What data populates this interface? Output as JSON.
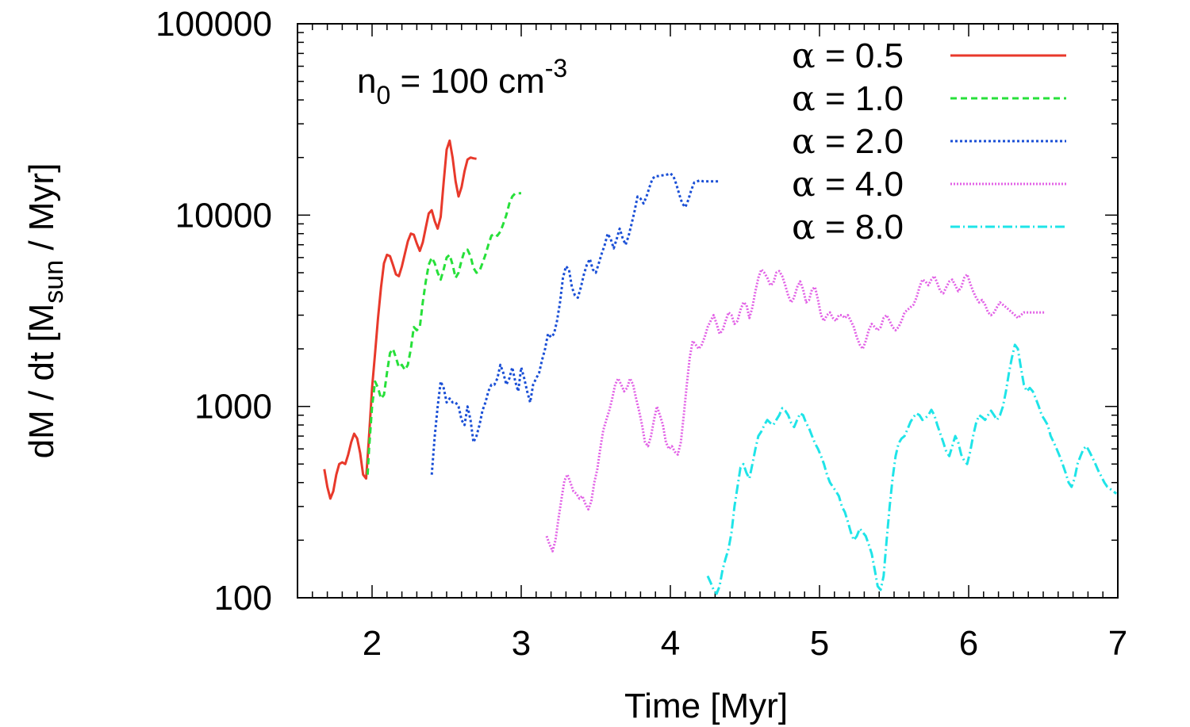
{
  "chart_data": {
    "type": "line",
    "title": "",
    "xlabel": "Time [Myr]",
    "ylabel": {
      "main": "dM / dt [M",
      "sub": "sun",
      "tail": " / Myr]"
    },
    "xlim": [
      1.5,
      7
    ],
    "ylim": [
      100,
      100000
    ],
    "yscale": "log",
    "xticks": [
      2,
      3,
      4,
      5,
      6,
      7
    ],
    "yticks": [
      100,
      1000,
      10000,
      100000
    ],
    "annotation": {
      "base": "n",
      "sub": "0",
      "mid": " = 100 cm",
      "sup": "-3"
    },
    "legend_position": "top-right",
    "series": [
      {
        "name": "α = 0.5",
        "greek": "α",
        "value_label": " = 0.5",
        "color": "#e8392b",
        "dash": "solid",
        "x": [
          1.68,
          1.7,
          1.72,
          1.74,
          1.76,
          1.78,
          1.8,
          1.82,
          1.84,
          1.86,
          1.88,
          1.9,
          1.92,
          1.94,
          1.96,
          1.98,
          2.0,
          2.02,
          2.04,
          2.06,
          2.08,
          2.1,
          2.12,
          2.14,
          2.16,
          2.18,
          2.2,
          2.22,
          2.24,
          2.26,
          2.28,
          2.3,
          2.32,
          2.34,
          2.36,
          2.38,
          2.4,
          2.42,
          2.44,
          2.46,
          2.48,
          2.5,
          2.52,
          2.54,
          2.56,
          2.58,
          2.6,
          2.62,
          2.64,
          2.66,
          2.68,
          2.7
        ],
        "y": [
          470,
          380,
          330,
          360,
          440,
          500,
          510,
          500,
          560,
          650,
          720,
          680,
          570,
          440,
          420,
          700,
          1250,
          1900,
          2900,
          4200,
          5600,
          6200,
          6100,
          5500,
          4900,
          4800,
          5400,
          6300,
          7300,
          8000,
          7900,
          7100,
          6500,
          7200,
          8600,
          10200,
          10600,
          9300,
          8500,
          9800,
          14800,
          22000,
          24500,
          20000,
          15000,
          12500,
          14000,
          17000,
          19500,
          20000,
          19800,
          19700
        ]
      },
      {
        "name": "α = 1.0",
        "greek": "α",
        "value_label": " = 1.0",
        "color": "#27e03a",
        "dash": "8,5",
        "x": [
          1.97,
          1.98,
          2.0,
          2.02,
          2.04,
          2.06,
          2.08,
          2.1,
          2.12,
          2.14,
          2.16,
          2.18,
          2.2,
          2.22,
          2.24,
          2.26,
          2.28,
          2.3,
          2.32,
          2.34,
          2.36,
          2.38,
          2.4,
          2.42,
          2.44,
          2.46,
          2.48,
          2.5,
          2.52,
          2.54,
          2.56,
          2.58,
          2.6,
          2.62,
          2.64,
          2.66,
          2.68,
          2.7,
          2.72,
          2.74,
          2.76,
          2.78,
          2.8,
          2.82,
          2.84,
          2.86,
          2.88,
          2.9,
          2.92,
          2.94,
          2.96,
          2.98,
          3.0
        ],
        "y": [
          440,
          600,
          1000,
          1350,
          1250,
          1100,
          1150,
          1500,
          1900,
          2000,
          1800,
          1600,
          1650,
          1550,
          1650,
          2000,
          2600,
          2500,
          2600,
          3500,
          4500,
          5500,
          6000,
          5600,
          5000,
          4600,
          5200,
          6000,
          6200,
          5500,
          4700,
          5000,
          5800,
          6500,
          6600,
          6100,
          5300,
          5000,
          5100,
          5600,
          6200,
          7000,
          7800,
          8000,
          7800,
          8200,
          9000,
          10000,
          11500,
          12500,
          13000,
          13000,
          13000
        ]
      },
      {
        "name": "α = 2.0",
        "greek": "α",
        "value_label": " = 2.0",
        "color": "#1a4fd6",
        "dash": "3,3",
        "x": [
          2.4,
          2.42,
          2.44,
          2.46,
          2.48,
          2.5,
          2.52,
          2.54,
          2.56,
          2.58,
          2.6,
          2.62,
          2.64,
          2.66,
          2.68,
          2.7,
          2.72,
          2.74,
          2.76,
          2.78,
          2.8,
          2.82,
          2.84,
          2.86,
          2.88,
          2.9,
          2.92,
          2.94,
          2.96,
          2.98,
          3.0,
          3.02,
          3.04,
          3.06,
          3.08,
          3.1,
          3.12,
          3.14,
          3.16,
          3.18,
          3.2,
          3.22,
          3.24,
          3.26,
          3.28,
          3.3,
          3.32,
          3.34,
          3.36,
          3.38,
          3.4,
          3.42,
          3.44,
          3.46,
          3.48,
          3.5,
          3.52,
          3.54,
          3.56,
          3.58,
          3.6,
          3.62,
          3.64,
          3.66,
          3.68,
          3.7,
          3.72,
          3.74,
          3.76,
          3.78,
          3.8,
          3.82,
          3.84,
          3.86,
          3.88,
          3.9,
          3.92,
          3.94,
          3.96,
          3.98,
          4.0,
          4.02,
          4.04,
          4.06,
          4.08,
          4.1,
          4.12,
          4.14,
          4.16,
          4.18,
          4.2,
          4.22,
          4.24,
          4.26,
          4.28,
          4.3,
          4.32
        ],
        "y": [
          440,
          700,
          1000,
          1350,
          1250,
          1050,
          1100,
          1050,
          1050,
          1000,
          850,
          800,
          1000,
          850,
          650,
          700,
          800,
          950,
          1050,
          1200,
          1300,
          1300,
          1400,
          1650,
          1500,
          1300,
          1400,
          1600,
          1350,
          1200,
          1600,
          1400,
          1200,
          1050,
          1300,
          1400,
          1500,
          1750,
          2000,
          2400,
          2300,
          2400,
          2800,
          3500,
          4700,
          5400,
          5200,
          4200,
          3800,
          3700,
          4200,
          4900,
          5500,
          5900,
          5200,
          5000,
          5600,
          6300,
          7000,
          8000,
          7500,
          6700,
          7500,
          8500,
          7600,
          7000,
          7800,
          9000,
          10500,
          12500,
          12200,
          11500,
          12500,
          14000,
          15500,
          16000,
          16000,
          16100,
          16200,
          16300,
          16500,
          16000,
          14500,
          12800,
          11500,
          11000,
          12000,
          13500,
          14800,
          15000,
          15200,
          15000,
          15000,
          15000,
          15000,
          15000,
          15000
        ]
      },
      {
        "name": "α = 4.0",
        "greek": "α",
        "value_label": " = 4.0",
        "color": "#e262e6",
        "dash": "2,2",
        "x": [
          3.17,
          3.19,
          3.21,
          3.23,
          3.25,
          3.27,
          3.29,
          3.31,
          3.33,
          3.35,
          3.37,
          3.39,
          3.41,
          3.43,
          3.45,
          3.47,
          3.49,
          3.51,
          3.53,
          3.55,
          3.57,
          3.59,
          3.61,
          3.63,
          3.65,
          3.67,
          3.69,
          3.71,
          3.73,
          3.75,
          3.77,
          3.79,
          3.81,
          3.83,
          3.85,
          3.87,
          3.89,
          3.91,
          3.93,
          3.95,
          3.97,
          3.99,
          4.01,
          4.03,
          4.05,
          4.07,
          4.09,
          4.11,
          4.13,
          4.15,
          4.17,
          4.19,
          4.21,
          4.23,
          4.25,
          4.27,
          4.29,
          4.31,
          4.33,
          4.35,
          4.37,
          4.39,
          4.41,
          4.43,
          4.45,
          4.47,
          4.49,
          4.51,
          4.53,
          4.55,
          4.57,
          4.59,
          4.61,
          4.63,
          4.65,
          4.67,
          4.69,
          4.71,
          4.73,
          4.75,
          4.77,
          4.79,
          4.81,
          4.83,
          4.85,
          4.87,
          4.89,
          4.91,
          4.93,
          4.95,
          4.97,
          4.99,
          5.01,
          5.03,
          5.05,
          5.07,
          5.09,
          5.11,
          5.13,
          5.15,
          5.17,
          5.19,
          5.21,
          5.23,
          5.25,
          5.27,
          5.29,
          5.31,
          5.33,
          5.35,
          5.37,
          5.39,
          5.41,
          5.43,
          5.45,
          5.47,
          5.49,
          5.51,
          5.53,
          5.55,
          5.57,
          5.59,
          5.61,
          5.63,
          5.65,
          5.67,
          5.69,
          5.71,
          5.73,
          5.75,
          5.77,
          5.79,
          5.81,
          5.83,
          5.85,
          5.87,
          5.89,
          5.91,
          5.93,
          5.95,
          5.97,
          5.99,
          6.01,
          6.03,
          6.05,
          6.07,
          6.09,
          6.11,
          6.13,
          6.15,
          6.17,
          6.19,
          6.21,
          6.23,
          6.25,
          6.27,
          6.29,
          6.31,
          6.33,
          6.35,
          6.37,
          6.39,
          6.41,
          6.43,
          6.45,
          6.47,
          6.49,
          6.51
        ],
        "y": [
          210,
          190,
          175,
          200,
          260,
          330,
          410,
          440,
          400,
          360,
          350,
          330,
          340,
          310,
          290,
          320,
          400,
          470,
          600,
          750,
          850,
          950,
          1100,
          1300,
          1400,
          1300,
          1200,
          1250,
          1400,
          1300,
          1100,
          950,
          800,
          650,
          620,
          700,
          850,
          1000,
          900,
          800,
          650,
          600,
          620,
          580,
          560,
          650,
          900,
          1300,
          1800,
          2200,
          2100,
          2000,
          2100,
          2300,
          2600,
          2800,
          3000,
          2700,
          2400,
          2500,
          2800,
          3100,
          3000,
          2700,
          2800,
          3200,
          3500,
          3400,
          2900,
          3300,
          4000,
          4700,
          5200,
          5000,
          4700,
          4300,
          4400,
          5000,
          5100,
          4800,
          4300,
          3800,
          3500,
          3700,
          4200,
          4500,
          4100,
          3500,
          3600,
          4100,
          4200,
          3600,
          3000,
          2800,
          3000,
          3100,
          2900,
          2800,
          3000,
          3000,
          2900,
          3000,
          2800,
          2600,
          2300,
          2100,
          2000,
          2200,
          2500,
          2700,
          2600,
          2500,
          2600,
          2900,
          3000,
          2800,
          2600,
          2500,
          2600,
          2800,
          3100,
          3200,
          3300,
          3400,
          3700,
          4200,
          4600,
          4500,
          4300,
          4600,
          4800,
          4400,
          4000,
          3900,
          4200,
          4500,
          4600,
          4300,
          4000,
          4200,
          4700,
          4900,
          4400,
          4000,
          3700,
          3500,
          3600,
          3400,
          3100,
          3000,
          3100,
          3300,
          3500,
          3400,
          3300,
          3200,
          3100,
          3000,
          2900,
          3000,
          3100,
          3100,
          3100,
          3100,
          3100,
          3100,
          3100,
          3100
        ]
      },
      {
        "name": "α = 8.0",
        "greek": "α",
        "value_label": " = 8.0",
        "color": "#1fe4e8",
        "dash": "12,4,2,4",
        "x": [
          4.25,
          4.27,
          4.29,
          4.31,
          4.33,
          4.35,
          4.37,
          4.39,
          4.41,
          4.43,
          4.45,
          4.47,
          4.49,
          4.51,
          4.53,
          4.55,
          4.57,
          4.59,
          4.61,
          4.63,
          4.65,
          4.67,
          4.69,
          4.71,
          4.73,
          4.75,
          4.77,
          4.79,
          4.81,
          4.83,
          4.85,
          4.87,
          4.89,
          4.91,
          4.93,
          4.95,
          4.97,
          4.99,
          5.01,
          5.03,
          5.05,
          5.07,
          5.09,
          5.11,
          5.13,
          5.15,
          5.17,
          5.19,
          5.21,
          5.23,
          5.25,
          5.27,
          5.29,
          5.31,
          5.33,
          5.35,
          5.37,
          5.39,
          5.41,
          5.43,
          5.45,
          5.47,
          5.49,
          5.51,
          5.53,
          5.55,
          5.57,
          5.59,
          5.61,
          5.63,
          5.65,
          5.67,
          5.69,
          5.71,
          5.73,
          5.75,
          5.77,
          5.79,
          5.81,
          5.83,
          5.85,
          5.87,
          5.89,
          5.91,
          5.93,
          5.95,
          5.97,
          5.99,
          6.01,
          6.03,
          6.05,
          6.07,
          6.09,
          6.11,
          6.13,
          6.15,
          6.17,
          6.19,
          6.21,
          6.23,
          6.25,
          6.27,
          6.29,
          6.31,
          6.33,
          6.35,
          6.37,
          6.39,
          6.41,
          6.43,
          6.45,
          6.47,
          6.49,
          6.51,
          6.53,
          6.55,
          6.57,
          6.59,
          6.61,
          6.63,
          6.65,
          6.67,
          6.69,
          6.71,
          6.73,
          6.75,
          6.77,
          6.79,
          6.81,
          6.83,
          6.85,
          6.87,
          6.89,
          6.91,
          6.93,
          6.95,
          6.97,
          6.99
        ],
        "y": [
          130,
          120,
          110,
          105,
          115,
          140,
          160,
          180,
          220,
          300,
          380,
          480,
          500,
          450,
          420,
          500,
          600,
          700,
          740,
          800,
          850,
          820,
          800,
          850,
          900,
          980,
          950,
          900,
          820,
          780,
          850,
          920,
          900,
          820,
          770,
          700,
          640,
          600,
          550,
          500,
          440,
          400,
          380,
          360,
          340,
          300,
          280,
          250,
          220,
          200,
          210,
          230,
          220,
          210,
          190,
          170,
          140,
          115,
          110,
          130,
          200,
          300,
          420,
          550,
          640,
          680,
          700,
          760,
          830,
          880,
          920,
          900,
          850,
          870,
          900,
          960,
          900,
          800,
          720,
          650,
          580,
          550,
          620,
          700,
          650,
          560,
          520,
          500,
          580,
          700,
          820,
          900,
          880,
          850,
          900,
          950,
          900,
          850,
          900,
          1000,
          1200,
          1500,
          1800,
          2100,
          2000,
          1600,
          1300,
          1200,
          1250,
          1200,
          1100,
          1000,
          900,
          850,
          800,
          700,
          650,
          600,
          550,
          500,
          450,
          400,
          380,
          420,
          500,
          550,
          600,
          620,
          580,
          540,
          500,
          460,
          430,
          400,
          380,
          370,
          360,
          350
        ]
      }
    ]
  }
}
